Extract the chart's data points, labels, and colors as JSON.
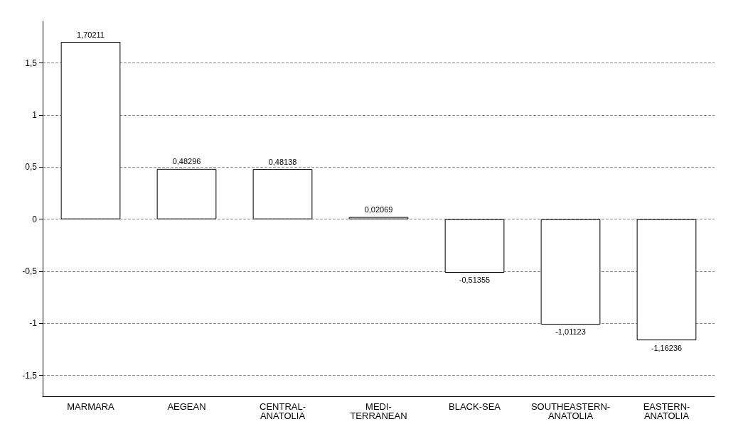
{
  "chart_data": {
    "type": "bar",
    "categories": [
      "MARMARA",
      "AEGEAN",
      "CENTRAL-\nANATOLIA",
      "MEDI-\nTERRANEAN",
      "BLACK-SEA",
      "SOUTHEASTERN-\nANATOLIA",
      "EASTERN-\nANATOLIA"
    ],
    "values": [
      1.70211,
      0.48296,
      0.48138,
      0.02069,
      -0.51355,
      -1.01123,
      -1.16236
    ],
    "value_labels": [
      "1,70211",
      "0,48296",
      "0,48138",
      "0,02069",
      "-0,51355",
      "-1,01123",
      "-1,16236"
    ],
    "color": "#ffffff",
    "ylim": [
      -1.7,
      1.9
    ],
    "yticks": [
      {
        "value": -1.5,
        "label": "-1,5"
      },
      {
        "value": -1,
        "label": "-1"
      },
      {
        "value": -0.5,
        "label": "-0,5"
      },
      {
        "value": 0,
        "label": "0"
      },
      {
        "value": 0.5,
        "label": "0,5"
      },
      {
        "value": 1,
        "label": "1"
      },
      {
        "value": 1.5,
        "label": "1,5"
      }
    ],
    "grid": "y"
  }
}
